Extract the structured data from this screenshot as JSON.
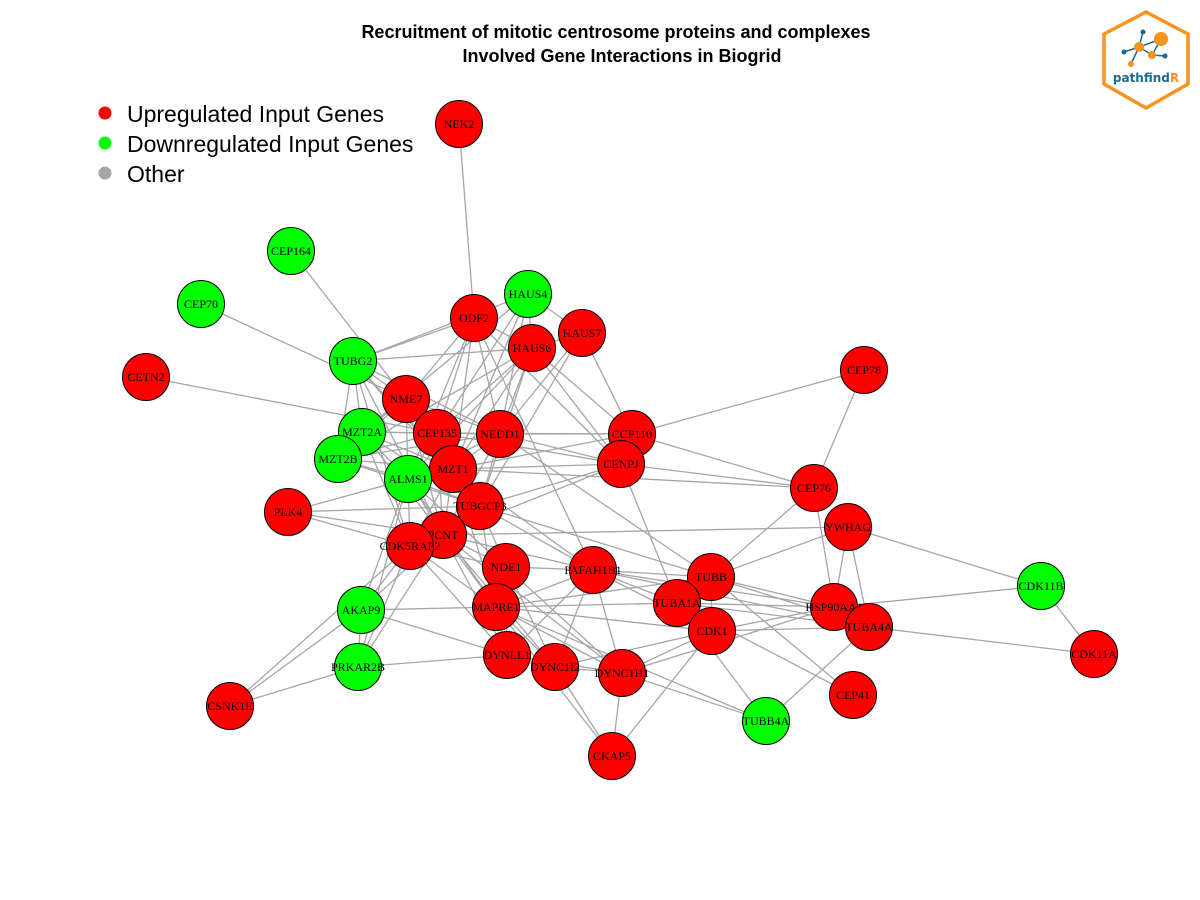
{
  "title_line1": "Recruitment of mitotic centrosome proteins and complexes",
  "title_line2": "Involved Gene Interactions in Biogrid",
  "legend": [
    {
      "label": "Upregulated Input Genes",
      "color": "#ff0000"
    },
    {
      "label": "Downregulated Input Genes",
      "color": "#00ff00"
    },
    {
      "label": "Other",
      "color": "#a6a6a6"
    }
  ],
  "logo": {
    "text_main": "pathfind",
    "text_accent": "R",
    "border_color": "#f7931e",
    "text_color": "#1d6a8c"
  },
  "colors": {
    "up": "#ff0000",
    "down": "#00ff00",
    "edge": "#a6a6a6"
  },
  "nodes": [
    {
      "id": "NEK2",
      "label": "NEK2",
      "type": "up"
    },
    {
      "id": "CEP164",
      "label": "CEP164",
      "type": "down"
    },
    {
      "id": "CEP70",
      "label": "CEP70",
      "type": "down"
    },
    {
      "id": "CETN2",
      "label": "CETN2",
      "type": "up"
    },
    {
      "id": "HAUS4",
      "label": "HAUS4",
      "type": "down"
    },
    {
      "id": "ODF2",
      "label": "ODF2",
      "type": "up"
    },
    {
      "id": "HAUS7",
      "label": "HAUS7",
      "type": "up"
    },
    {
      "id": "HAUS6",
      "label": "HAUS6",
      "type": "up"
    },
    {
      "id": "TUBG2",
      "label": "TUBG2",
      "type": "down"
    },
    {
      "id": "NME7",
      "label": "NME7",
      "type": "up"
    },
    {
      "id": "CEP78",
      "label": "CEP78",
      "type": "up"
    },
    {
      "id": "MZT2A",
      "label": "MZT2A",
      "type": "down"
    },
    {
      "id": "CEP135",
      "label": "CEP135",
      "type": "up"
    },
    {
      "id": "NEDD1",
      "label": "NEDD1",
      "type": "up"
    },
    {
      "id": "CCP110",
      "label": "CCP110",
      "type": "up"
    },
    {
      "id": "MZT2B",
      "label": "MZT2B",
      "type": "down"
    },
    {
      "id": "MZT1",
      "label": "MZT1",
      "type": "up"
    },
    {
      "id": "ALMS1",
      "label": "ALMS1",
      "type": "down"
    },
    {
      "id": "CENPJ",
      "label": "CENPJ",
      "type": "up"
    },
    {
      "id": "CEP76",
      "label": "CEP76",
      "type": "up"
    },
    {
      "id": "PLK4",
      "label": "PLK4",
      "type": "up"
    },
    {
      "id": "TUBGCP3",
      "label": "TUBGCP3",
      "type": "up"
    },
    {
      "id": "YWHAG",
      "label": "YWHAG",
      "type": "up"
    },
    {
      "id": "PCNT",
      "label": "PCNT",
      "type": "up"
    },
    {
      "id": "CDK5RAP2",
      "label": "CDK5RAP2",
      "type": "up"
    },
    {
      "id": "NDE1",
      "label": "NDE1",
      "type": "up"
    },
    {
      "id": "PAFAH1B1",
      "label": "PAFAH1B1",
      "type": "up"
    },
    {
      "id": "TUBB",
      "label": "TUBB",
      "type": "up"
    },
    {
      "id": "CDK11B",
      "label": "CDK11B",
      "type": "down"
    },
    {
      "id": "AKAP9",
      "label": "AKAP9",
      "type": "down"
    },
    {
      "id": "MAPRE1",
      "label": "MAPRE1",
      "type": "up"
    },
    {
      "id": "TUBA1A",
      "label": "TUBA1A",
      "type": "up"
    },
    {
      "id": "HSP90AA1",
      "label": "HSP90AA1",
      "type": "up"
    },
    {
      "id": "TUBA4A",
      "label": "TUBA4A",
      "type": "up"
    },
    {
      "id": "CDK1",
      "label": "CDK1",
      "type": "up"
    },
    {
      "id": "CDK11A",
      "label": "CDK11A",
      "type": "up"
    },
    {
      "id": "DYNLL1",
      "label": "DYNLL1",
      "type": "up"
    },
    {
      "id": "PRKAR2B",
      "label": "PRKAR2B",
      "type": "down"
    },
    {
      "id": "DYNC1I2",
      "label": "DYNC1I2",
      "type": "up"
    },
    {
      "id": "DYNC1H1",
      "label": "DYNC1H1",
      "type": "up"
    },
    {
      "id": "CEP41",
      "label": "CEP41",
      "type": "up"
    },
    {
      "id": "CSNK1E",
      "label": "CSNK1E",
      "type": "up"
    },
    {
      "id": "TUBB4A",
      "label": "TUBB4A",
      "type": "down"
    },
    {
      "id": "CKAP5",
      "label": "CKAP5",
      "type": "up"
    }
  ],
  "edges": [
    [
      "NEK2",
      "ODF2"
    ],
    [
      "CEP164",
      "NME7"
    ],
    [
      "CEP70",
      "NME7"
    ],
    [
      "CETN2",
      "CEP135"
    ],
    [
      "HAUS4",
      "HAUS6"
    ],
    [
      "HAUS4",
      "HAUS7"
    ],
    [
      "HAUS4",
      "TUBG2"
    ],
    [
      "HAUS4",
      "NEDD1"
    ],
    [
      "HAUS4",
      "CEP135"
    ],
    [
      "HAUS4",
      "MZT1"
    ],
    [
      "HAUS4",
      "MZT2A"
    ],
    [
      "HAUS6",
      "HAUS7"
    ],
    [
      "HAUS6",
      "TUBG2"
    ],
    [
      "HAUS6",
      "NEDD1"
    ],
    [
      "HAUS6",
      "CEP135"
    ],
    [
      "HAUS6",
      "MZT1"
    ],
    [
      "HAUS6",
      "CENPJ"
    ],
    [
      "HAUS6",
      "CCP110"
    ],
    [
      "HAUS6",
      "TUBGCP3"
    ],
    [
      "HAUS6",
      "ALMS1"
    ],
    [
      "HAUS6",
      "MZT2B"
    ],
    [
      "HAUS7",
      "NEDD1"
    ],
    [
      "HAUS7",
      "CCP110"
    ],
    [
      "HAUS7",
      "TUBGCP3"
    ],
    [
      "ODF2",
      "HAUS6"
    ],
    [
      "ODF2",
      "NEDD1"
    ],
    [
      "ODF2",
      "CEP135"
    ],
    [
      "ODF2",
      "MZT1"
    ],
    [
      "ODF2",
      "ALMS1"
    ],
    [
      "ODF2",
      "CENPJ"
    ],
    [
      "ODF2",
      "TUBG2"
    ],
    [
      "ODF2",
      "NME7"
    ],
    [
      "ODF2",
      "PAFAH1B1"
    ],
    [
      "TUBG2",
      "MZT2A"
    ],
    [
      "TUBG2",
      "MZT2B"
    ],
    [
      "TUBG2",
      "NME7"
    ],
    [
      "TUBG2",
      "MZT1"
    ],
    [
      "TUBG2",
      "TUBGCP3"
    ],
    [
      "TUBG2",
      "NEDD1"
    ],
    [
      "TUBG2",
      "CDK5RAP2"
    ],
    [
      "TUBG2",
      "PCNT"
    ],
    [
      "NME7",
      "MZT2A"
    ],
    [
      "NME7",
      "MZT2B"
    ],
    [
      "NME7",
      "CEP135"
    ],
    [
      "NME7",
      "MZT1"
    ],
    [
      "NME7",
      "TUBGCP3"
    ],
    [
      "NME7",
      "NEDD1"
    ],
    [
      "NME7",
      "ALMS1"
    ],
    [
      "NME7",
      "PCNT"
    ],
    [
      "MZT2A",
      "MZT2B"
    ],
    [
      "MZT2A",
      "CEP135"
    ],
    [
      "MZT2A",
      "NEDD1"
    ],
    [
      "MZT2A",
      "MZT1"
    ],
    [
      "MZT2A",
      "TUBGCP3"
    ],
    [
      "MZT2A",
      "ALMS1"
    ],
    [
      "MZT2A",
      "CDK5RAP2"
    ],
    [
      "MZT2A",
      "PCNT"
    ],
    [
      "MZT2B",
      "ALMS1"
    ],
    [
      "MZT2B",
      "MZT1"
    ],
    [
      "MZT2B",
      "TUBGCP3"
    ],
    [
      "MZT2B",
      "CEP135"
    ],
    [
      "MZT2B",
      "NEDD1"
    ],
    [
      "CEP135",
      "NEDD1"
    ],
    [
      "CEP135",
      "CCP110"
    ],
    [
      "CEP135",
      "MZT1"
    ],
    [
      "CEP135",
      "CENPJ"
    ],
    [
      "CEP135",
      "ALMS1"
    ],
    [
      "CEP135",
      "TUBGCP3"
    ],
    [
      "CEP135",
      "PCNT"
    ],
    [
      "NEDD1",
      "CCP110"
    ],
    [
      "NEDD1",
      "MZT1"
    ],
    [
      "NEDD1",
      "CENPJ"
    ],
    [
      "NEDD1",
      "TUBGCP3"
    ],
    [
      "NEDD1",
      "ALMS1"
    ],
    [
      "NEDD1",
      "PCNT"
    ],
    [
      "NEDD1",
      "TUBB"
    ],
    [
      "CCP110",
      "CENPJ"
    ],
    [
      "CCP110",
      "CEP78"
    ],
    [
      "CCP110",
      "CEP76"
    ],
    [
      "CCP110",
      "MZT1"
    ],
    [
      "CENPJ",
      "MZT1"
    ],
    [
      "CENPJ",
      "CEP76"
    ],
    [
      "CENPJ",
      "TUBA1A"
    ],
    [
      "CENPJ",
      "TUBGCP3"
    ],
    [
      "CENPJ",
      "PCNT"
    ],
    [
      "CEP78",
      "CEP76"
    ],
    [
      "CEP76",
      "TUBB"
    ],
    [
      "CEP76",
      "HSP90AA1"
    ],
    [
      "MZT1",
      "ALMS1"
    ],
    [
      "MZT1",
      "TUBGCP3"
    ],
    [
      "MZT1",
      "PCNT"
    ],
    [
      "MZT1",
      "CDK5RAP2"
    ],
    [
      "MZT1",
      "MAPRE1"
    ],
    [
      "MZT1",
      "PAFAH1B1"
    ],
    [
      "MZT1",
      "CEP76"
    ],
    [
      "ALMS1",
      "TUBGCP3"
    ],
    [
      "ALMS1",
      "PLK4"
    ],
    [
      "ALMS1",
      "CDK5RAP2"
    ],
    [
      "ALMS1",
      "PCNT"
    ],
    [
      "ALMS1",
      "AKAP9"
    ],
    [
      "ALMS1",
      "PRKAR2B"
    ],
    [
      "ALMS1",
      "MAPRE1"
    ],
    [
      "ALMS1",
      "NDE1"
    ],
    [
      "PLK4",
      "CDK5RAP2"
    ],
    [
      "PLK4",
      "PCNT"
    ],
    [
      "PLK4",
      "TUBGCP3"
    ],
    [
      "TUBGCP3",
      "PCNT"
    ],
    [
      "TUBGCP3",
      "CDK5RAP2"
    ],
    [
      "TUBGCP3",
      "NDE1"
    ],
    [
      "TUBGCP3",
      "PAFAH1B1"
    ],
    [
      "TUBGCP3",
      "TUBB"
    ],
    [
      "TUBGCP3",
      "MAPRE1"
    ],
    [
      "PCNT",
      "CDK5RAP2"
    ],
    [
      "PCNT",
      "AKAP9"
    ],
    [
      "PCNT",
      "PRKAR2B"
    ],
    [
      "PCNT",
      "NDE1"
    ],
    [
      "PCNT",
      "MAPRE1"
    ],
    [
      "PCNT",
      "DYNLL1"
    ],
    [
      "PCNT",
      "DYNC1I2"
    ],
    [
      "PCNT",
      "DYNC1H1"
    ],
    [
      "PCNT",
      "PAFAH1B1"
    ],
    [
      "PCNT",
      "YWHAG"
    ],
    [
      "CDK5RAP2",
      "AKAP9"
    ],
    [
      "CDK5RAP2",
      "MAPRE1"
    ],
    [
      "CDK5RAP2",
      "PRKAR2B"
    ],
    [
      "CDK5RAP2",
      "NDE1"
    ],
    [
      "CDK5RAP2",
      "DYNLL1"
    ],
    [
      "CDK5RAP2",
      "CSNK1E"
    ],
    [
      "YWHAG",
      "TUBB"
    ],
    [
      "YWHAG",
      "CDK11B"
    ],
    [
      "YWHAG",
      "TUBA4A"
    ],
    [
      "YWHAG",
      "HSP90AA1"
    ],
    [
      "NDE1",
      "PAFAH1B1"
    ],
    [
      "NDE1",
      "DYNLL1"
    ],
    [
      "NDE1",
      "DYNC1I2"
    ],
    [
      "NDE1",
      "DYNC1H1"
    ],
    [
      "NDE1",
      "MAPRE1"
    ],
    [
      "PAFAH1B1",
      "DYNC1H1"
    ],
    [
      "PAFAH1B1",
      "DYNLL1"
    ],
    [
      "PAFAH1B1",
      "DYNC1I2"
    ],
    [
      "PAFAH1B1",
      "TUBA1A"
    ],
    [
      "PAFAH1B1",
      "TUBB"
    ],
    [
      "PAFAH1B1",
      "MAPRE1"
    ],
    [
      "PAFAH1B1",
      "HSP90AA1"
    ],
    [
      "PAFAH1B1",
      "TUBA4A"
    ],
    [
      "PAFAH1B1",
      "CDK1"
    ],
    [
      "TUBB",
      "TUBA1A"
    ],
    [
      "TUBB",
      "TUBA4A"
    ],
    [
      "TUBB",
      "HSP90AA1"
    ],
    [
      "TUBB",
      "CDK1"
    ],
    [
      "TUBB",
      "CEP41"
    ],
    [
      "TUBB",
      "MAPRE1"
    ],
    [
      "TUBA1A",
      "TUBA4A"
    ],
    [
      "TUBA1A",
      "HSP90AA1"
    ],
    [
      "TUBA1A",
      "CDK1"
    ],
    [
      "TUBA1A",
      "MAPRE1"
    ],
    [
      "TUBA1A",
      "TUBB4A"
    ],
    [
      "TUBA1A",
      "CEP41"
    ],
    [
      "HSP90AA1",
      "TUBA4A"
    ],
    [
      "HSP90AA1",
      "CDK11B"
    ],
    [
      "HSP90AA1",
      "CDK1"
    ],
    [
      "HSP90AA1",
      "DYNC1H1"
    ],
    [
      "TUBA4A",
      "CDK11A"
    ],
    [
      "TUBA4A",
      "TUBB4A"
    ],
    [
      "TUBA4A",
      "CDK1"
    ],
    [
      "CDK11B",
      "CDK11A"
    ],
    [
      "CDK1",
      "DYNC1H1"
    ],
    [
      "CDK1",
      "CKAP5"
    ],
    [
      "CDK1",
      "MAPRE1"
    ],
    [
      "CDK1",
      "DYNC1I2"
    ],
    [
      "AKAP9",
      "PRKAR2B"
    ],
    [
      "AKAP9",
      "MAPRE1"
    ],
    [
      "AKAP9",
      "CSNK1E"
    ],
    [
      "AKAP9",
      "DYNLL1"
    ],
    [
      "MAPRE1",
      "DYNLL1"
    ],
    [
      "MAPRE1",
      "DYNC1H1"
    ],
    [
      "MAPRE1",
      "DYNC1I2"
    ],
    [
      "MAPRE1",
      "TUBB4A"
    ],
    [
      "MAPRE1",
      "CKAP5"
    ],
    [
      "PRKAR2B",
      "CSNK1E"
    ],
    [
      "PRKAR2B",
      "DYNLL1"
    ],
    [
      "DYNLL1",
      "DYNC1I2"
    ],
    [
      "DYNLL1",
      "DYNC1H1"
    ],
    [
      "DYNC1I2",
      "DYNC1H1"
    ],
    [
      "DYNC1I2",
      "CKAP5"
    ],
    [
      "DYNC1H1",
      "CKAP5"
    ],
    [
      "DYNC1H1",
      "TUBB4A"
    ]
  ]
}
